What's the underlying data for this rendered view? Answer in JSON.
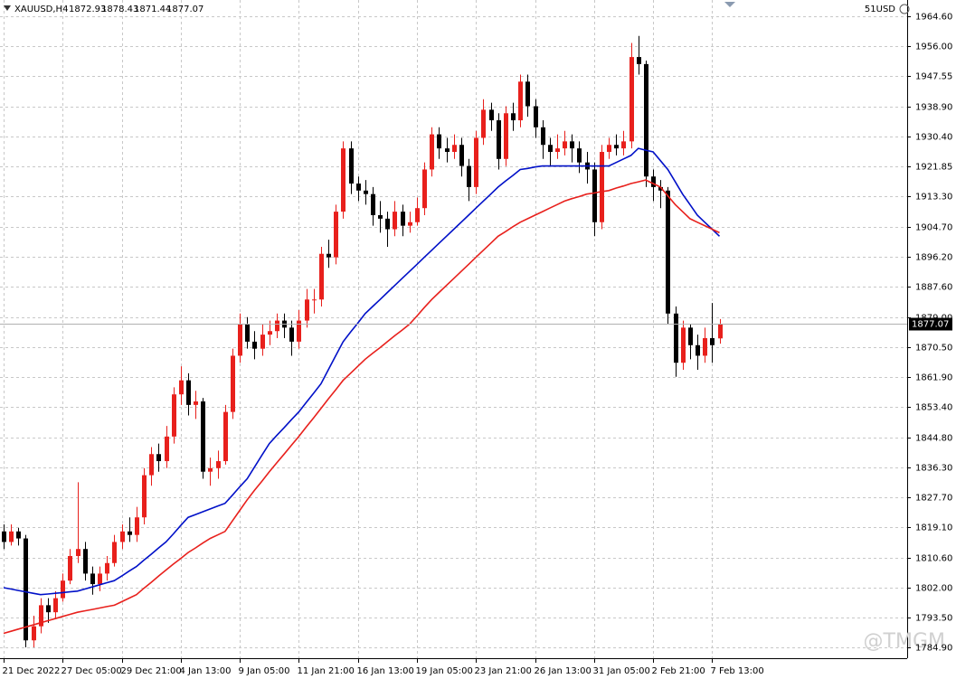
{
  "chart_data": {
    "type": "candlestick",
    "title": "XAUUSD,H4",
    "account": "51USD",
    "watermark": "@TMGM",
    "up_color": "#e8201c",
    "down_color": "#000000",
    "grid": true,
    "categories": [
      "21 Dec 2022",
      null,
      null,
      null,
      null,
      null,
      null,
      null,
      "27 Dec 05:00",
      null,
      null,
      null,
      null,
      null,
      null,
      null,
      "29 Dec 21:00",
      null,
      null,
      null,
      null,
      null,
      null,
      null,
      "4 Jan 13:00",
      null,
      null,
      null,
      null,
      null,
      null,
      null,
      "9 Jan 05:00",
      null,
      null,
      null,
      null,
      null,
      null,
      null,
      "11 Jan 21:00",
      null,
      null,
      null,
      null,
      null,
      null,
      null,
      "16 Jan 13:00",
      null,
      null,
      null,
      null,
      null,
      null,
      null,
      "19 Jan 05:00",
      null,
      null,
      null,
      null,
      null,
      null,
      null,
      "23 Jan 21:00",
      null,
      null,
      null,
      null,
      null,
      null,
      null,
      "26 Jan 13:00",
      null,
      null,
      null,
      null,
      null,
      null,
      null,
      "31 Jan 05:00",
      null,
      null,
      null,
      null,
      null,
      null,
      null,
      "2 Feb 21:00",
      null,
      null,
      null,
      null,
      null,
      null,
      null,
      "7 Feb 13:00",
      null
    ],
    "open": [
      1818,
      1815,
      1818,
      1816,
      1787,
      1791,
      1797,
      1795,
      1799,
      1804,
      1811,
      1813,
      1806,
      1803,
      1806,
      1809,
      1815,
      1818,
      1817,
      1822,
      1834,
      1840,
      1838,
      1845,
      1857,
      1861,
      1854,
      1855,
      1835,
      1836,
      1838,
      1852,
      1868,
      1877,
      1872,
      1870,
      1874,
      1875,
      1878,
      1876,
      1872,
      1878,
      1884,
      1884,
      1897,
      1896,
      1909,
      1927,
      1917,
      1915,
      1914,
      1908,
      1907,
      1904,
      1909,
      1905,
      1906,
      1910,
      1921,
      1931,
      1927,
      1926,
      1928,
      1922,
      1916,
      1930,
      1938,
      1935,
      1924,
      1937,
      1935,
      1946,
      1939,
      1933,
      1928,
      1926,
      1927,
      1929,
      1927,
      1923,
      1921,
      1906,
      1926,
      1928,
      1927,
      1929,
      1953,
      1951,
      1919,
      1916,
      1915,
      1880,
      1866,
      1876,
      1871,
      1868,
      1873,
      1872.93
    ],
    "high": [
      1820,
      1820,
      1819,
      1817,
      1794,
      1799,
      1799,
      1801,
      1806,
      1813,
      1832,
      1815,
      1808,
      1808,
      1811,
      1817,
      1820,
      1822,
      1825,
      1836,
      1842,
      1843,
      1848,
      1859,
      1865,
      1863,
      1858,
      1856,
      1839,
      1841,
      1854,
      1870,
      1880,
      1879,
      1875,
      1877,
      1878,
      1880,
      1880,
      1878,
      1881,
      1887,
      1887,
      1899,
      1901,
      1911,
      1929,
      1929,
      1919,
      1918,
      1916,
      1912,
      1909,
      1912,
      1911,
      1909,
      1913,
      1923,
      1933,
      1933,
      1930,
      1931,
      1930,
      1924,
      1932,
      1941,
      1940,
      1937,
      1939,
      1940,
      1948,
      1948,
      1941,
      1935,
      1930,
      1931,
      1932,
      1931,
      1929,
      1926,
      1923,
      1928,
      1930,
      1931,
      1932,
      1957,
      1959,
      1952,
      1921,
      1918,
      1916,
      1882,
      1878,
      1877,
      1874,
      1876,
      1883,
      1878.43
    ],
    "low": [
      1813,
      1814,
      1814,
      1785,
      1785,
      1789,
      1792,
      1793,
      1798,
      1803,
      1809,
      1804,
      1800,
      1801,
      1804,
      1808,
      1813,
      1815,
      1815,
      1820,
      1831,
      1835,
      1836,
      1843,
      1854,
      1851,
      1850,
      1833,
      1831,
      1833,
      1837,
      1850,
      1866,
      1870,
      1867,
      1868,
      1871,
      1873,
      1873,
      1868,
      1870,
      1876,
      1880,
      1882,
      1893,
      1894,
      1907,
      1914,
      1912,
      1911,
      1905,
      1903,
      1899,
      1902,
      1902,
      1903,
      1905,
      1908,
      1919,
      1924,
      1923,
      1924,
      1919,
      1912,
      1914,
      1928,
      1932,
      1921,
      1922,
      1932,
      1933,
      1936,
      1930,
      1924,
      1922,
      1924,
      1925,
      1923,
      1920,
      1917,
      1902,
      1904,
      1924,
      1925,
      1925,
      1927,
      1948,
      1916,
      1912,
      1910,
      1877,
      1862,
      1864,
      1867,
      1864,
      1866,
      1866,
      1871.44
    ],
    "close": [
      1815,
      1818,
      1816,
      1787,
      1791,
      1797,
      1795,
      1799,
      1804,
      1811,
      1813,
      1806,
      1803,
      1806,
      1809,
      1815,
      1818,
      1817,
      1822,
      1834,
      1840,
      1838,
      1845,
      1857,
      1861,
      1854,
      1855,
      1835,
      1836,
      1838,
      1852,
      1868,
      1877,
      1872,
      1870,
      1874,
      1875,
      1878,
      1876,
      1872,
      1878,
      1884,
      1884,
      1897,
      1896,
      1909,
      1927,
      1917,
      1915,
      1914,
      1908,
      1907,
      1904,
      1909,
      1905,
      1906,
      1910,
      1921,
      1931,
      1927,
      1926,
      1928,
      1922,
      1916,
      1930,
      1938,
      1935,
      1924,
      1937,
      1935,
      1946,
      1939,
      1933,
      1928,
      1926,
      1927,
      1929,
      1927,
      1923,
      1921,
      1906,
      1926,
      1928,
      1927,
      1929,
      1953,
      1951,
      1919,
      1916,
      1915,
      1880,
      1866,
      1876,
      1871,
      1868,
      1873,
      1871,
      1877.07
    ],
    "moving_averages": [
      {
        "color": "#0010c8",
        "values": [
          1802,
          1801.6,
          1801.2,
          1800.8,
          1800.4,
          1800,
          1800.2,
          1800.4,
          1800.6,
          1800.8,
          1801,
          1801.6,
          1802.2,
          1802.8,
          1803.4,
          1804,
          1805.3,
          1806.7,
          1808,
          1809.8,
          1811.5,
          1813.3,
          1815,
          1817.3,
          1819.7,
          1822,
          1822.8,
          1823.6,
          1824.4,
          1825.2,
          1826,
          1828.3,
          1830.7,
          1833,
          1836.3,
          1839.7,
          1843,
          1845.3,
          1847.5,
          1849.8,
          1852,
          1854.7,
          1857.3,
          1860,
          1864,
          1868,
          1872,
          1874.7,
          1877.3,
          1880,
          1882,
          1884,
          1886,
          1888,
          1890,
          1892,
          1894,
          1896,
          1898,
          1900,
          1902,
          1904,
          1906,
          1908,
          1910,
          1912,
          1914,
          1916,
          1917.7,
          1919.3,
          1921,
          1921.3,
          1921.7,
          1922,
          1922,
          1922,
          1922,
          1922,
          1922,
          1922,
          1922,
          1922,
          1922,
          1923,
          1924,
          1925,
          1927,
          1926.5,
          1926,
          1923.5,
          1921,
          1917.5,
          1914,
          1911,
          1908,
          1906,
          1904,
          1902
        ]
      },
      {
        "color": "#e8201c",
        "values": [
          1789,
          1789.6,
          1790.2,
          1790.8,
          1791.4,
          1792,
          1792.6,
          1793.2,
          1793.8,
          1794.4,
          1795,
          1795.4,
          1795.8,
          1796.2,
          1796.6,
          1797,
          1798,
          1799,
          1800,
          1801.8,
          1803.5,
          1805.3,
          1807,
          1808.7,
          1810.3,
          1812,
          1813.3,
          1814.7,
          1816,
          1817,
          1818,
          1821,
          1824,
          1827,
          1829.7,
          1832.3,
          1835,
          1837.5,
          1840,
          1842.5,
          1845,
          1847.7,
          1850.3,
          1853,
          1855.7,
          1858.3,
          1861,
          1863,
          1865,
          1867,
          1868.7,
          1870.3,
          1872,
          1873.7,
          1875.3,
          1877,
          1879.3,
          1881.7,
          1884,
          1886,
          1888,
          1890,
          1892,
          1894,
          1896,
          1898,
          1900,
          1902,
          1903.3,
          1904.7,
          1906,
          1907,
          1908,
          1909,
          1910,
          1911,
          1912,
          1912.7,
          1913.3,
          1914,
          1914.3,
          1914.7,
          1915,
          1915.7,
          1916.3,
          1917,
          1917.5,
          1918,
          1917,
          1916,
          1913.5,
          1911,
          1909,
          1907,
          1906,
          1905,
          1904,
          1903
        ]
      }
    ],
    "ylim": [
      1781.92,
      1969.23
    ],
    "yticks": [
      {
        "value": 1964.6,
        "label": "1964.60"
      },
      {
        "value": 1956,
        "label": "1956.00"
      },
      1947.55,
      {
        "value": 1938.9,
        "label": "1938.90"
      },
      {
        "value": 1930.4,
        "label": "1930.40"
      },
      1921.85,
      {
        "value": 1913.3,
        "label": "1913.30"
      },
      {
        "value": 1904.7,
        "label": "1904.70"
      },
      {
        "value": 1896.2,
        "label": "1896.20"
      },
      {
        "value": 1887.6,
        "label": "1887.60"
      },
      {
        "value": 1879,
        "label": "1879.00"
      },
      {
        "value": 1870.5,
        "label": "1870.50"
      },
      {
        "value": 1861.9,
        "label": "1861.90"
      },
      {
        "value": 1853.4,
        "label": "1853.40"
      },
      {
        "value": 1844.8,
        "label": "1844.80"
      },
      {
        "value": 1836.3,
        "label": "1836.30"
      },
      {
        "value": 1827.7,
        "label": "1827.70"
      },
      {
        "value": 1819.1,
        "label": "1819.10"
      },
      {
        "value": 1810.6,
        "label": "1810.60"
      },
      {
        "value": 1802,
        "label": "1802.00"
      },
      {
        "value": 1793.5,
        "label": "1793.50"
      },
      {
        "value": 1784.9,
        "label": "1784.90"
      }
    ]
  }
}
